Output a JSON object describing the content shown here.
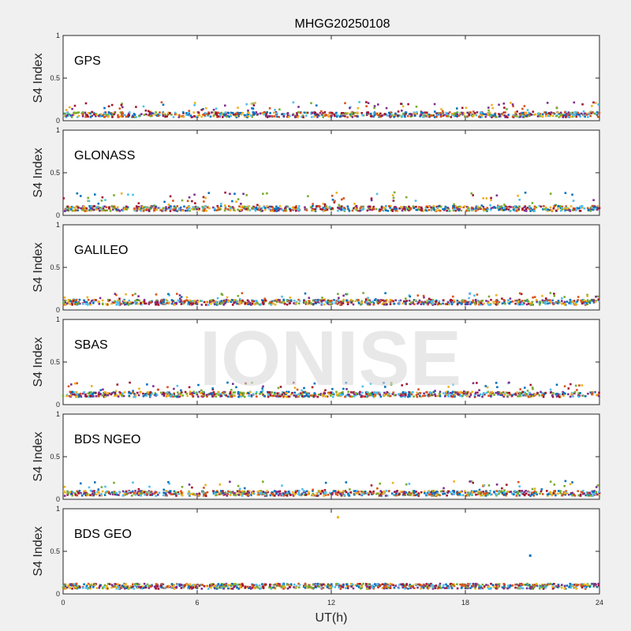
{
  "chart_data": {
    "type": "scatter",
    "title": "MHGG20250108",
    "xlabel": "UT(h)",
    "ylabel": "S4 Index",
    "xlim": [
      0,
      24
    ],
    "ylim": [
      0,
      1
    ],
    "xticks": [
      "0",
      "6",
      "12",
      "18",
      "24"
    ],
    "yticks": [
      "0",
      "0.5",
      "1"
    ],
    "watermark": "IONISE",
    "series_colors": [
      "#0072BD",
      "#D95319",
      "#EDB120",
      "#7E2F8E",
      "#77AC30",
      "#4DBEEE",
      "#A2142F"
    ],
    "panels": [
      {
        "label": "GPS",
        "baseline_level": 0.07,
        "max_level": 0.22,
        "outliers": []
      },
      {
        "label": "GLONASS",
        "baseline_level": 0.08,
        "max_level": 0.27,
        "outliers": []
      },
      {
        "label": "GALILEO",
        "baseline_level": 0.09,
        "max_level": 0.2,
        "outliers": []
      },
      {
        "label": "SBAS",
        "baseline_level": 0.12,
        "max_level": 0.26,
        "outliers": []
      },
      {
        "label": "BDS NGEO",
        "baseline_level": 0.07,
        "max_level": 0.22,
        "outliers": []
      },
      {
        "label": "BDS GEO",
        "baseline_level": 0.09,
        "max_level": 0.12,
        "outliers": [
          {
            "x": 12.3,
            "y": 0.9,
            "color": "#EDB120"
          },
          {
            "x": 20.9,
            "y": 0.45,
            "color": "#0072BD"
          }
        ]
      }
    ]
  }
}
